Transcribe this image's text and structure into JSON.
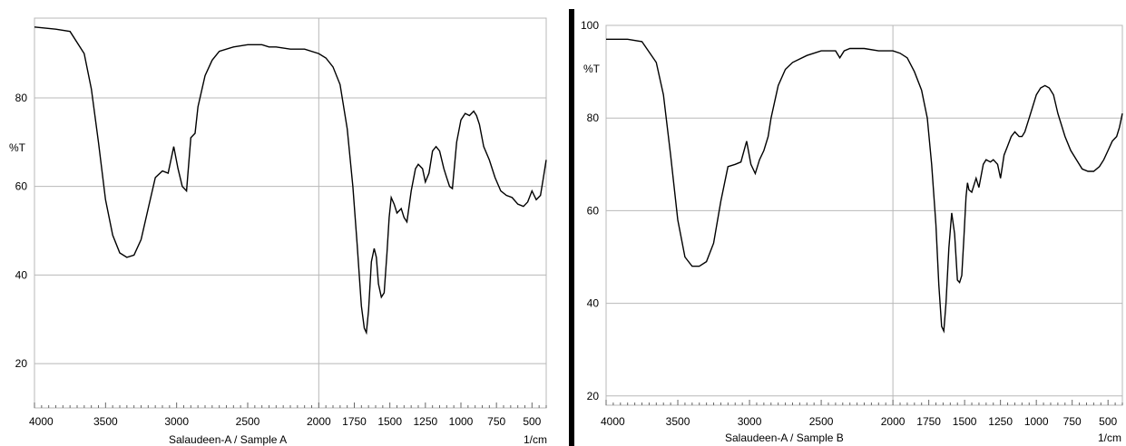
{
  "chart_data": [
    {
      "type": "line",
      "title": "",
      "xlabel": "",
      "ylabel": "%T",
      "x_unit": "1/cm",
      "footer_caption": "Salaudeen-A /   Sample   A",
      "xlim": [
        4000,
        400
      ],
      "ylim": [
        10,
        98
      ],
      "xticks": [
        4000,
        3500,
        3000,
        2500,
        2000,
        1750,
        1500,
        1250,
        1000,
        750,
        500
      ],
      "xtick_labels": [
        "4000",
        "3500",
        "3000",
        "2500",
        "2000",
        "1750",
        "1500",
        "1250",
        "1000",
        "750",
        "500"
      ],
      "yticks": [
        20,
        40,
        60,
        80
      ],
      "ytick_labels": [
        "20",
        "40",
        "60",
        "80"
      ],
      "grid": true,
      "series": [
        {
          "x": [
            4000,
            3850,
            3750,
            3650,
            3600,
            3550,
            3500,
            3450,
            3400,
            3350,
            3300,
            3250,
            3200,
            3150,
            3100,
            3060,
            3020,
            2990,
            2960,
            2930,
            2900,
            2870,
            2850,
            2800,
            2750,
            2700,
            2600,
            2500,
            2400,
            2350,
            2300,
            2200,
            2100,
            2000,
            1950,
            1900,
            1850,
            1800,
            1760,
            1730,
            1700,
            1680,
            1665,
            1650,
            1630,
            1610,
            1595,
            1580,
            1560,
            1540,
            1520,
            1505,
            1490,
            1470,
            1450,
            1420,
            1400,
            1380,
            1350,
            1320,
            1300,
            1270,
            1250,
            1225,
            1200,
            1175,
            1150,
            1120,
            1100,
            1080,
            1060,
            1030,
            1000,
            970,
            940,
            910,
            890,
            870,
            840,
            800,
            760,
            720,
            680,
            640,
            600,
            560,
            530,
            500,
            470,
            440,
            420,
            400
          ],
          "y": [
            96,
            95.5,
            95,
            90,
            82,
            70,
            57,
            49,
            45,
            44,
            44.5,
            48,
            55,
            62,
            63.5,
            63,
            69,
            64,
            60,
            59,
            71,
            72,
            78,
            85,
            88.5,
            90.5,
            91.5,
            92,
            92,
            91.5,
            91.5,
            91,
            91,
            90,
            89,
            87,
            83,
            73,
            60,
            47,
            33,
            28,
            27,
            32,
            43,
            46,
            44,
            38,
            35,
            36,
            45,
            53,
            57.5,
            56,
            54,
            55,
            53,
            52,
            59,
            64,
            65,
            64,
            61,
            63,
            68,
            69,
            68,
            64,
            62,
            60,
            59.5,
            70,
            75,
            76.5,
            76,
            77,
            76,
            74,
            69,
            66,
            62,
            59,
            58,
            57.5,
            56,
            55.5,
            56.5,
            59,
            57,
            58,
            62,
            66
          ]
        }
      ]
    },
    {
      "type": "line",
      "title": "",
      "xlabel": "",
      "ylabel": "%T",
      "x_unit": "1/cm",
      "footer_caption": "Salaudeen-A /   Sample   B",
      "xlim": [
        4000,
        400
      ],
      "ylim": [
        18,
        100
      ],
      "xticks": [
        4000,
        3500,
        3000,
        2500,
        2000,
        1750,
        1500,
        1250,
        1000,
        750,
        500
      ],
      "xtick_labels": [
        "4000",
        "3500",
        "3000",
        "2500",
        "2000",
        "1750",
        "1500",
        "1250",
        "1000",
        "750",
        "500"
      ],
      "yticks": [
        20,
        40,
        60,
        80,
        100
      ],
      "ytick_labels": [
        "20",
        "40",
        "60",
        "80",
        "100"
      ],
      "grid": true,
      "series": [
        {
          "x": [
            4000,
            3850,
            3750,
            3650,
            3600,
            3550,
            3500,
            3450,
            3400,
            3350,
            3300,
            3250,
            3200,
            3150,
            3100,
            3060,
            3020,
            2990,
            2960,
            2930,
            2900,
            2870,
            2850,
            2800,
            2750,
            2700,
            2600,
            2500,
            2400,
            2370,
            2340,
            2300,
            2200,
            2100,
            2000,
            1950,
            1900,
            1850,
            1800,
            1760,
            1730,
            1700,
            1680,
            1660,
            1645,
            1630,
            1610,
            1590,
            1570,
            1550,
            1535,
            1520,
            1505,
            1490,
            1480,
            1470,
            1450,
            1420,
            1400,
            1370,
            1350,
            1320,
            1300,
            1270,
            1250,
            1225,
            1200,
            1175,
            1150,
            1120,
            1100,
            1080,
            1050,
            1000,
            970,
            940,
            910,
            880,
            850,
            800,
            760,
            720,
            680,
            640,
            600,
            560,
            530,
            500,
            470,
            440,
            420,
            400
          ],
          "y": [
            97,
            97,
            96.5,
            92,
            85,
            72,
            58,
            50,
            48,
            48,
            49,
            53,
            62,
            69.5,
            70,
            70.5,
            75,
            70,
            68,
            71,
            73,
            76,
            80,
            87,
            90.5,
            92,
            93.5,
            94.5,
            94.5,
            93,
            94.5,
            95,
            95,
            94.5,
            94.5,
            94,
            93,
            90,
            86,
            80,
            70,
            57,
            44,
            35,
            34,
            40,
            52,
            59.5,
            55,
            45,
            44.5,
            46,
            54,
            63,
            66,
            64.5,
            64,
            67,
            65,
            70,
            71,
            70.5,
            71,
            70,
            67,
            72,
            74,
            76,
            77,
            76,
            76,
            77,
            80,
            85,
            86.5,
            87,
            86.5,
            85,
            81,
            76,
            73,
            71,
            69,
            68.5,
            68.5,
            69.5,
            71,
            73,
            75,
            76,
            78,
            81
          ]
        }
      ]
    }
  ]
}
